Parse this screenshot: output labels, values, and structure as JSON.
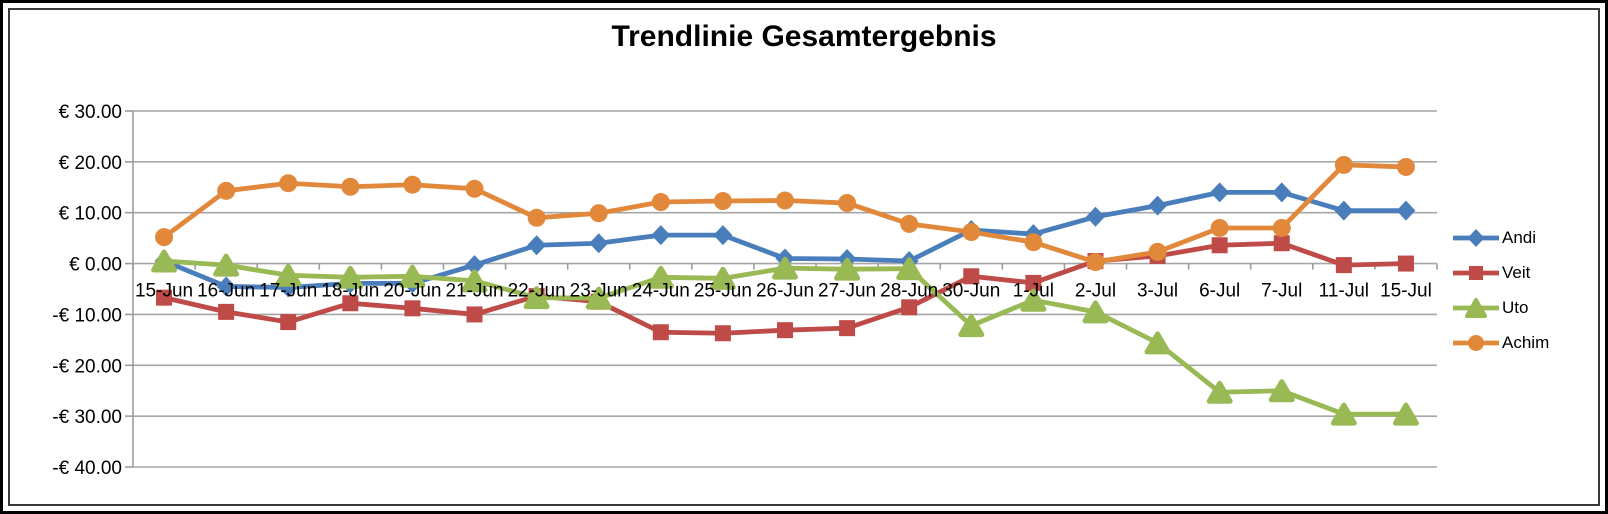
{
  "chart_data": {
    "type": "line",
    "title": "Trendlinie Gesamtergebnis",
    "legend_position": "right",
    "grid": true,
    "categories": [
      "15-Jun",
      "16-Jun",
      "17-Jun",
      "18-Jun",
      "20-Jun",
      "21-Jun",
      "22-Jun",
      "23-Jun",
      "24-Jun",
      "25-Jun",
      "26-Jun",
      "27-Jun",
      "28-Jun",
      "30-Jun",
      "1-Jul",
      "2-Jul",
      "3-Jul",
      "6-Jul",
      "7-Jul",
      "11-Jul",
      "15-Jul"
    ],
    "series": [
      {
        "name": "Andi",
        "color": "#4A7EBB",
        "marker": "diamond",
        "values": [
          0.5,
          -4.5,
          -4.7,
          -3.9,
          -3.9,
          -0.3,
          3.6,
          4.0,
          5.6,
          5.6,
          1.0,
          0.9,
          0.5,
          6.6,
          5.8,
          9.2,
          11.4,
          14.0,
          14.0,
          10.4,
          10.4
        ]
      },
      {
        "name": "Veit",
        "color": "#BE4B48",
        "marker": "square",
        "values": [
          -6.7,
          -9.5,
          -11.5,
          -7.8,
          -8.8,
          -10.0,
          -6.4,
          -7.5,
          -13.5,
          -13.7,
          -13.1,
          -12.7,
          -8.6,
          -2.5,
          -3.8,
          0.5,
          1.5,
          3.6,
          4.0,
          -0.3,
          0.0
        ]
      },
      {
        "name": "Uto",
        "color": "#98B954",
        "marker": "triangle",
        "values": [
          0.5,
          -0.3,
          -2.3,
          -2.7,
          -2.5,
          -3.4,
          -6.7,
          -6.8,
          -2.7,
          -2.9,
          -0.9,
          -1.1,
          -1.0,
          -12.2,
          -7.2,
          -9.5,
          -15.6,
          -25.3,
          -25.0,
          -29.6,
          -29.6
        ]
      },
      {
        "name": "Achim",
        "color": "#E2883B",
        "marker": "circle",
        "values": [
          5.2,
          14.3,
          15.8,
          15.1,
          15.5,
          14.7,
          9.0,
          9.9,
          12.1,
          12.3,
          12.4,
          11.9,
          7.8,
          6.2,
          4.2,
          0.3,
          2.3,
          7.0,
          7.0,
          19.4,
          19.0
        ]
      }
    ],
    "y_axis": {
      "min": -40,
      "max": 30,
      "step": 10,
      "tick_labels": [
        "€ 30.00",
        "€ 20.00",
        "€ 10.00",
        "€ 0.00",
        "-€ 10.00",
        "-€ 20.00",
        "-€ 30.00",
        "-€ 40.00"
      ]
    }
  },
  "colors": {
    "gridline": "#A6A6A6",
    "axis": "#9C9C9C",
    "text": "#000000"
  }
}
